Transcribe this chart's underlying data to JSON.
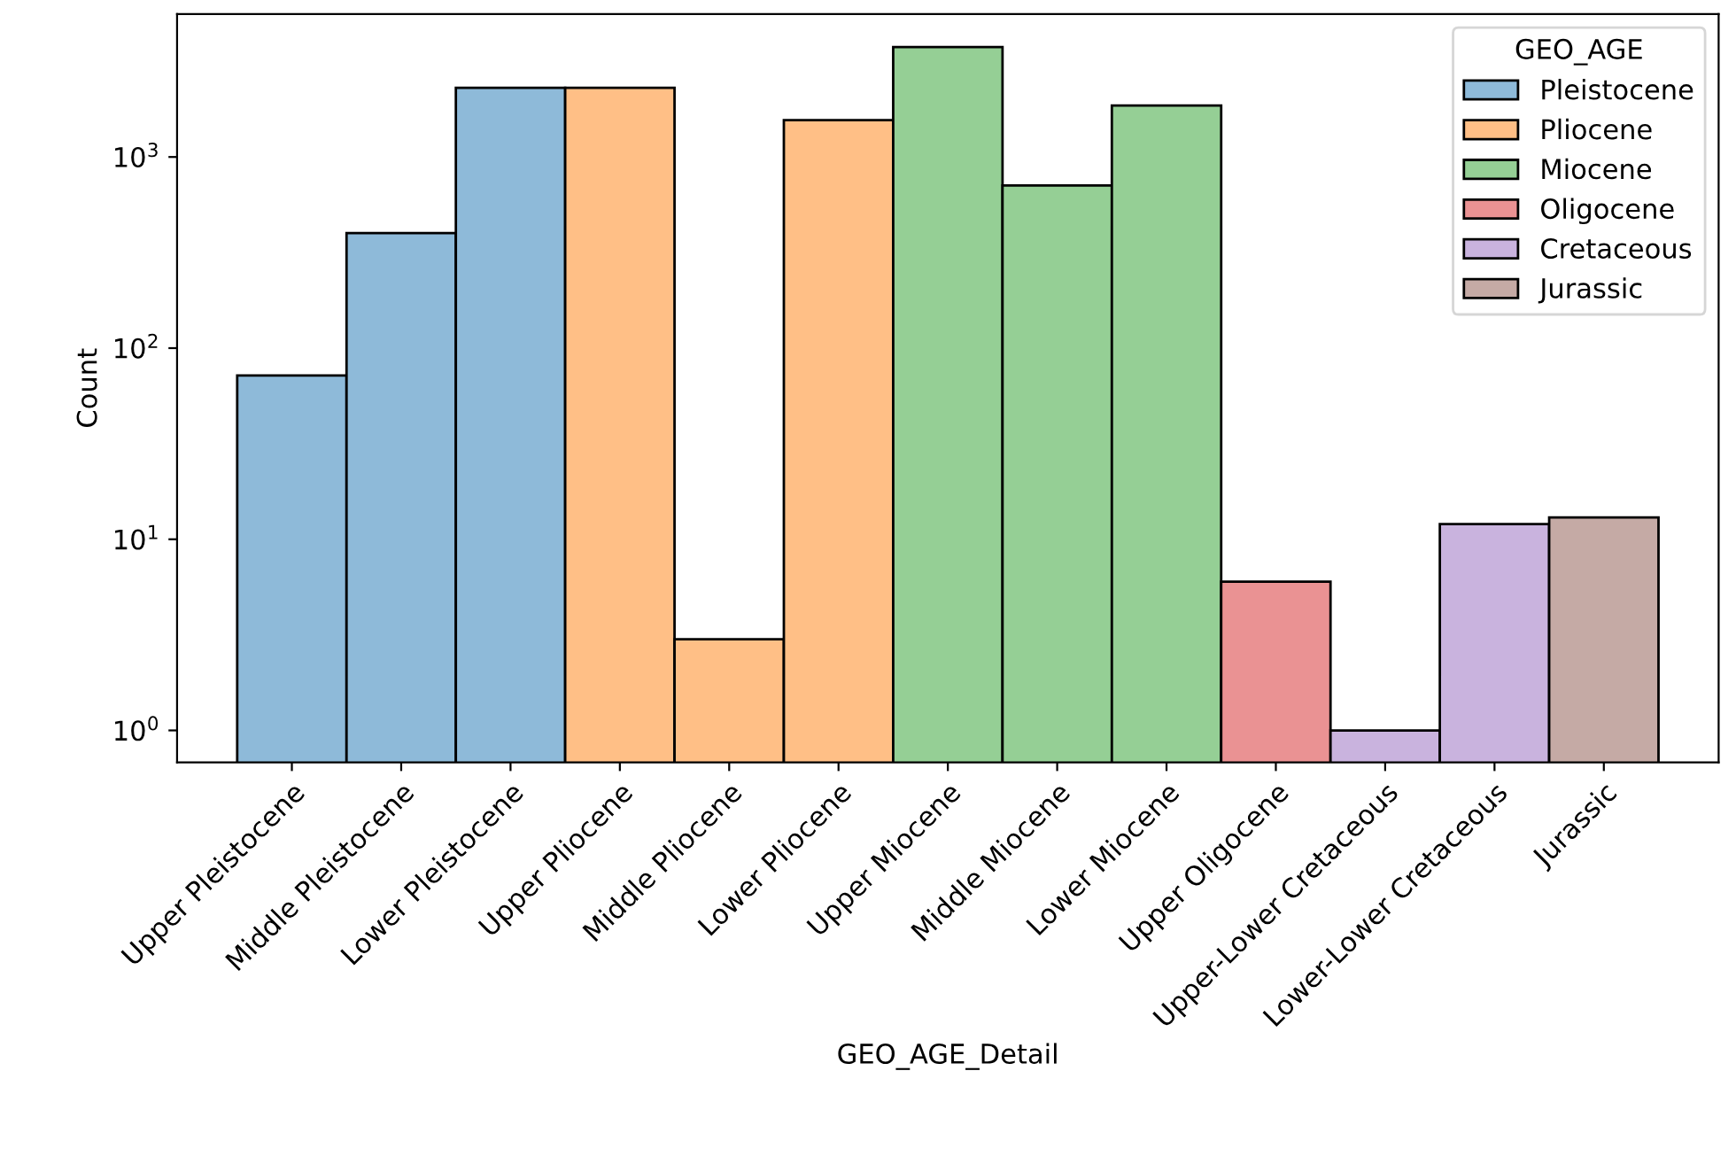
{
  "chart_data": {
    "type": "bar",
    "xlabel": "GEO_AGE_Detail",
    "ylabel": "Count",
    "legend_title": "GEO_AGE",
    "legend": "top right",
    "log": true,
    "categories": [
      "Upper Pleistocene",
      "Middle Pleistocene",
      "Lower Pleistocene",
      "Upper Pliocene",
      "Middle Pliocene",
      "Lower Pliocene",
      "Upper Miocene",
      "Middle Miocene",
      "Lower Miocene",
      "Upper Oligocene",
      "Upper-Lower Cretaceous",
      "Lower-Lower Cretaceous",
      "Jurassic"
    ],
    "series": [
      {
        "name": "Pleistocene",
        "color": "#8ebad9",
        "values": [
          72,
          400,
          2300,
          null,
          null,
          null,
          null,
          null,
          null,
          null,
          null,
          null,
          null
        ]
      },
      {
        "name": "Pliocene",
        "color": "#ffbf86",
        "values": [
          null,
          null,
          null,
          2300,
          3,
          1560,
          null,
          null,
          null,
          null,
          null,
          null,
          null
        ]
      },
      {
        "name": "Miocene",
        "color": "#95cf95",
        "values": [
          null,
          null,
          null,
          null,
          null,
          null,
          3760,
          710,
          1860,
          null,
          null,
          null,
          null
        ]
      },
      {
        "name": "Oligocene",
        "color": "#ea9293",
        "values": [
          null,
          null,
          null,
          null,
          null,
          null,
          null,
          null,
          null,
          6,
          null,
          null,
          null
        ]
      },
      {
        "name": "Cretaceous",
        "color": "#c9b3de",
        "values": [
          null,
          null,
          null,
          null,
          null,
          null,
          null,
          null,
          null,
          null,
          1,
          12,
          null
        ]
      },
      {
        "name": "Jurassic",
        "color": "#c5aaa5",
        "values": [
          null,
          null,
          null,
          null,
          null,
          null,
          null,
          null,
          null,
          null,
          null,
          null,
          13
        ]
      }
    ],
    "ylim": [
      0.68,
      5600
    ],
    "yticks": [
      {
        "value": 1,
        "label": "10$^{0}$"
      },
      {
        "value": 10,
        "label": "10$^{1}$"
      },
      {
        "value": 100,
        "label": "10$^{2}$"
      },
      {
        "value": 1000,
        "label": "10$^{3}$"
      }
    ]
  }
}
